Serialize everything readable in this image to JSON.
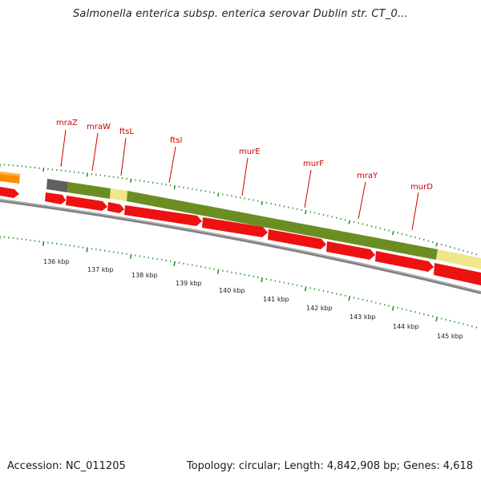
{
  "title": "Salmonella enterica subsp. enterica serovar Dublin str. CT_0...",
  "accession": "Accession: NC_011205",
  "summary": "Topology: circular; Length: 4,842,908 bp; Genes: 4,618",
  "colors": {
    "cds_arrow": "#ee1111",
    "backbone": "#808080",
    "tick": "#1e8c1e",
    "label": "#cc0000",
    "cog_green": "#6b8e23",
    "cog_yellow": "#f0e68c",
    "cog_orange": "#ff8c00",
    "cog_grey": "#606060"
  },
  "genes": [
    {
      "name": "mraZ"
    },
    {
      "name": "mraW"
    },
    {
      "name": "ftsL"
    },
    {
      "name": "ftsI"
    },
    {
      "name": "murE"
    },
    {
      "name": "murF"
    },
    {
      "name": "mraY"
    },
    {
      "name": "murD"
    }
  ],
  "scale_labels": [
    "136 kbp",
    "137 kbp",
    "138 kbp",
    "139 kbp",
    "140 kbp",
    "141 kbp",
    "142 kbp",
    "143 kbp",
    "144 kbp",
    "145 kbp"
  ]
}
